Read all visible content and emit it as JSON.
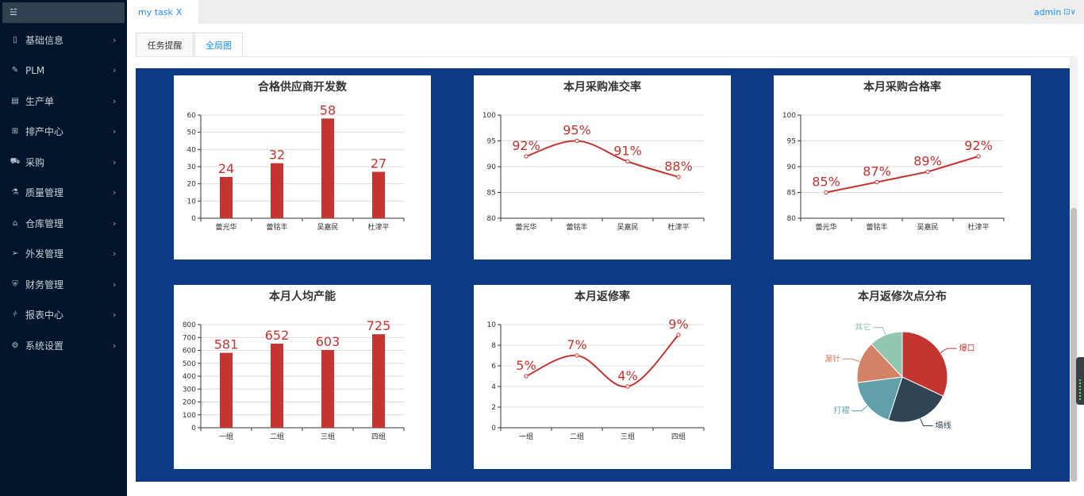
{
  "sidebar": {
    "toggle_icon": "☱",
    "items": [
      {
        "label": "基础信息",
        "icon": "▯",
        "icon_name": "file-icon"
      },
      {
        "label": "PLM",
        "icon": "✎",
        "icon_name": "pen-icon"
      },
      {
        "label": "生产单",
        "icon": "▤",
        "icon_name": "document-icon"
      },
      {
        "label": "排产中心",
        "icon": "⊞",
        "icon_name": "schedule-icon"
      },
      {
        "label": "采购",
        "icon": "⛟",
        "icon_name": "car-icon"
      },
      {
        "label": "质量管理",
        "icon": "⚗",
        "icon_name": "flask-icon"
      },
      {
        "label": "仓库管理",
        "icon": "⌂",
        "icon_name": "home-icon"
      },
      {
        "label": "外发管理",
        "icon": "➢",
        "icon_name": "send-icon"
      },
      {
        "label": "财务管理",
        "icon": "⛨",
        "icon_name": "shield-icon"
      },
      {
        "label": "报表中心",
        "icon": "⫩",
        "icon_name": "chart-icon"
      },
      {
        "label": "系统设置",
        "icon": "⚙",
        "icon_name": "gear-icon"
      }
    ],
    "arrow": "›"
  },
  "topbar": {
    "tab_label": "my task",
    "tab_close": "X",
    "user_name": "admin",
    "user_icon": "⊡∨"
  },
  "subtabs": [
    {
      "label": "任务提醒",
      "active": false
    },
    {
      "label": "全局图",
      "active": true
    }
  ],
  "chart_data": [
    {
      "type": "bar",
      "title": "合格供应商开发数",
      "categories": [
        "蕾光华",
        "蕾铭丰",
        "吴嘉民",
        "杜津平"
      ],
      "values": [
        24,
        32,
        58,
        27
      ],
      "labels": [
        "24",
        "32",
        "58",
        "27"
      ],
      "ylim": [
        0,
        60
      ],
      "yticks": [
        0,
        10,
        20,
        30,
        40,
        50,
        60
      ],
      "color": "#c23531"
    },
    {
      "type": "line",
      "smooth": true,
      "title": "本月采购准交率",
      "categories": [
        "蕾光华",
        "蕾铭丰",
        "吴嘉民",
        "杜津平"
      ],
      "values": [
        92,
        95,
        91,
        88
      ],
      "labels": [
        "92%",
        "95%",
        "91%",
        "88%"
      ],
      "ylim": [
        80,
        100
      ],
      "yticks": [
        80,
        85,
        90,
        95,
        100
      ],
      "color": "#c23531"
    },
    {
      "type": "line",
      "smooth": false,
      "title": "本月采购合格率",
      "categories": [
        "蕾光华",
        "蕾铭丰",
        "吴嘉民",
        "杜津平"
      ],
      "values": [
        85,
        87,
        89,
        92
      ],
      "labels": [
        "85%",
        "87%",
        "89%",
        "92%"
      ],
      "ylim": [
        80,
        100
      ],
      "yticks": [
        80,
        85,
        90,
        95,
        100
      ],
      "color": "#c23531"
    },
    {
      "type": "bar",
      "title": "本月人均产能",
      "categories": [
        "一组",
        "二组",
        "三组",
        "四组"
      ],
      "values": [
        581,
        652,
        603,
        725
      ],
      "labels": [
        "581",
        "652",
        "603",
        "725"
      ],
      "ylim": [
        0,
        800
      ],
      "yticks": [
        0,
        100,
        200,
        300,
        400,
        500,
        600,
        700,
        800
      ],
      "color": "#c23531"
    },
    {
      "type": "line",
      "smooth": true,
      "title": "本月返修率",
      "categories": [
        "一组",
        "二组",
        "三组",
        "四组"
      ],
      "values": [
        5,
        7,
        4,
        9
      ],
      "labels": [
        "5%",
        "7%",
        "4%",
        "9%"
      ],
      "ylim": [
        0,
        10
      ],
      "yticks": [
        0,
        2,
        4,
        6,
        8,
        10
      ],
      "color": "#c23531"
    },
    {
      "type": "pie",
      "title": "本月返修次点分布",
      "slices": [
        {
          "name": "爆口",
          "value": 32,
          "color": "#c23531"
        },
        {
          "name": "塌线",
          "value": 23,
          "color": "#2f4554"
        },
        {
          "name": "打褶",
          "value": 18,
          "color": "#61a0a8"
        },
        {
          "name": "漏针",
          "value": 15,
          "color": "#d48265"
        },
        {
          "name": "其它",
          "value": 12,
          "color": "#91c7ae"
        }
      ]
    }
  ]
}
